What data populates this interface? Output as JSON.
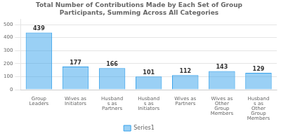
{
  "chart_data": {
    "type": "bar",
    "title": "Total Number of Contributions Made by Each Set of Group\nParticipants, Summing Across All Categories",
    "categories": [
      "Group\nLeaders",
      "Wives as\nInitiators",
      "Husband\ns as\nPartners",
      "Husband\ns as\nInitiators",
      "Wives as\nPartners",
      "Wives as\nOther\nGroup\nMembers",
      "Husband\ns as\nOther\nGroup\nMembers"
    ],
    "series": [
      {
        "name": "Series1",
        "values": [
          439,
          177,
          166,
          101,
          112,
          143,
          129
        ]
      }
    ],
    "ylim": [
      0,
      540
    ],
    "yticks": [
      0,
      100,
      200,
      300,
      400,
      500
    ],
    "grid": true,
    "legend": "bottom",
    "data_labels": true
  }
}
